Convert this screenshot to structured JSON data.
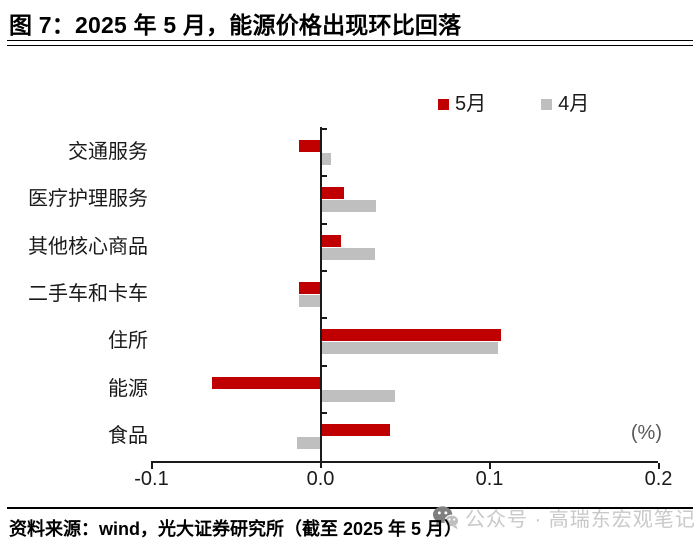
{
  "title": "图 7：2025 年 5 月，能源价格出现环比回落",
  "footer": {
    "source": "资料来源：wind，光大证券研究所（截至 2025 年 5 月）",
    "watermark": "公众号 · 高瑞东宏观笔记",
    "watermark_icon": "wechat-logo"
  },
  "colors": {
    "series_may": "#C00000",
    "series_april": "#BFBFBF",
    "axis": "#1a1a1a",
    "unit_label": "#595959",
    "watermark": "#c9c9c9"
  },
  "chart_data": {
    "type": "bar",
    "orientation": "horizontal",
    "title": "",
    "xlabel": "(%)",
    "ylabel": "",
    "xlim": [
      -0.1,
      0.2
    ],
    "xticks": [
      -0.1,
      0.0,
      0.1,
      0.2
    ],
    "xtick_labels": [
      "-0.1",
      "0.0",
      "0.1",
      "0.2"
    ],
    "grid": false,
    "legend_position": "top-right",
    "categories": [
      "交通服务",
      "医疗护理服务",
      "其他核心商品",
      "二手车和卡车",
      "住所",
      "能源",
      "食品"
    ],
    "series": [
      {
        "name": "5月",
        "key": "may",
        "color": "#C00000",
        "values": [
          -0.013,
          0.014,
          0.012,
          -0.013,
          0.107,
          -0.064,
          0.041
        ]
      },
      {
        "name": "4月",
        "key": "april",
        "color": "#BFBFBF",
        "values": [
          0.006,
          0.033,
          0.032,
          -0.013,
          0.105,
          0.044,
          -0.014
        ]
      }
    ]
  }
}
